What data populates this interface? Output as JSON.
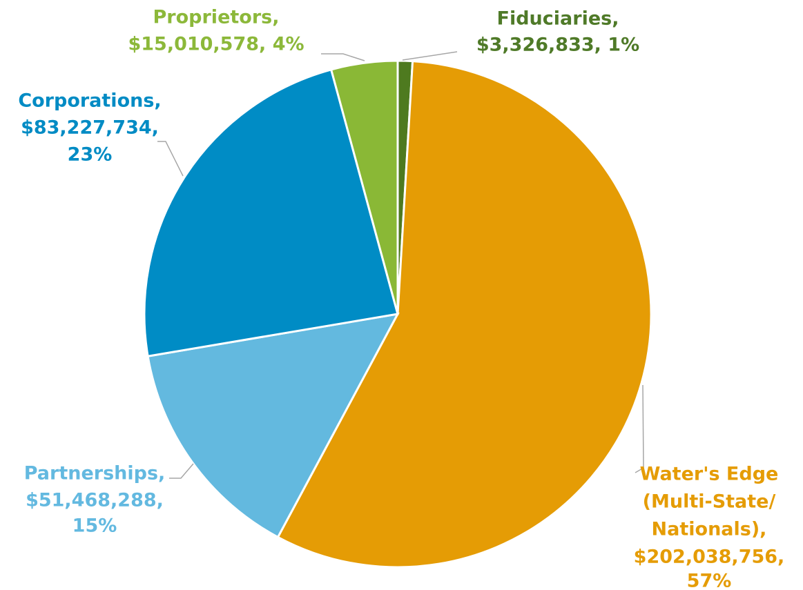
{
  "chart_data": {
    "type": "pie",
    "values": [
      3326833,
      202038756,
      51468288,
      83227734,
      15010578
    ],
    "label_lines": [
      [
        "Fiduciaries,",
        "$3,326,833, 1%"
      ],
      [
        "Water's Edge",
        "(Multi-State/",
        "Nationals),",
        "$202,038,756,",
        "57%"
      ],
      [
        "Partnerships,",
        "$51,468,288,",
        "15%"
      ],
      [
        "Corporations,",
        "$83,227,734,",
        "23%"
      ],
      [
        "Proprietors,",
        "$15,010,578, 4%"
      ]
    ],
    "colors": [
      "#4e7a1f",
      "#e59c05",
      "#63b9df",
      "#008cc5",
      "#8ab836"
    ],
    "label_colors": [
      "#4f7a28",
      "#e59c05",
      "#63b9e0",
      "#008bc4",
      "#8cb83a"
    ]
  }
}
